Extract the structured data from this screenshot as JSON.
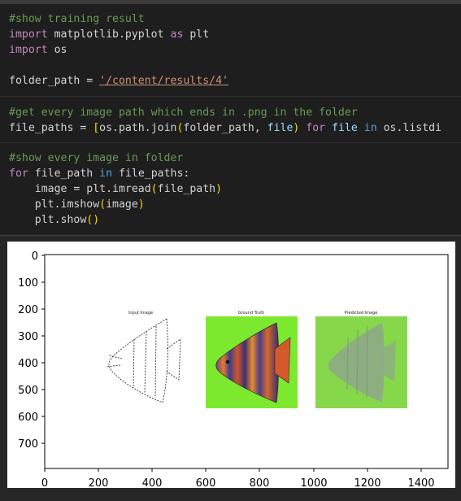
{
  "code": {
    "line1": "#show training result",
    "line2_kw": "import",
    "line2_rest": " matplotlib.pyplot ",
    "line2_as": "as",
    "line2_alias": " plt",
    "line3_kw": "import",
    "line3_rest": " os",
    "line5_var": "folder_path = ",
    "line5_str": "'/content/results/4'",
    "line7": "#get every image path which ends in .png in the folder",
    "line8_a": "file_paths = ",
    "line8_b": "[",
    "line8_c": "os.path.join",
    "line8_d": "(",
    "line8_e": "folder_path, ",
    "line8_f": "file",
    "line8_g": ")",
    "line8_h": " for ",
    "line8_i": "file",
    "line8_j": " in ",
    "line8_k": "os.listdi",
    "line10": "#show every image in folder",
    "line11_for": "for",
    "line11_var": " file_path ",
    "line11_in": "in",
    "line11_rest": " file_paths:",
    "line12_a": "    image = plt.imread",
    "line12_b": "(",
    "line12_c": "file_path",
    "line12_d": ")",
    "line13_a": "    plt.imshow",
    "line13_b": "(",
    "line13_c": "image",
    "line13_d": ")",
    "line14_a": "    plt.show",
    "line14_b": "()"
  },
  "chart_data": {
    "type": "image",
    "x_ticks": [
      "0",
      "200",
      "400",
      "600",
      "800",
      "1000",
      "1200",
      "1400"
    ],
    "y_ticks": [
      "0",
      "100",
      "200",
      "300",
      "400",
      "500",
      "600",
      "700"
    ],
    "panels": [
      {
        "title": "Input Image"
      },
      {
        "title": "Ground Truth"
      },
      {
        "title": "Predicted Image"
      }
    ]
  },
  "colors": {
    "comment": "#6a9955",
    "keyword": "#c586c0",
    "string": "#ce9178",
    "bracket": "#ffd700",
    "green_bg": "#7de92e",
    "predicted_bg": "#86d84a"
  }
}
